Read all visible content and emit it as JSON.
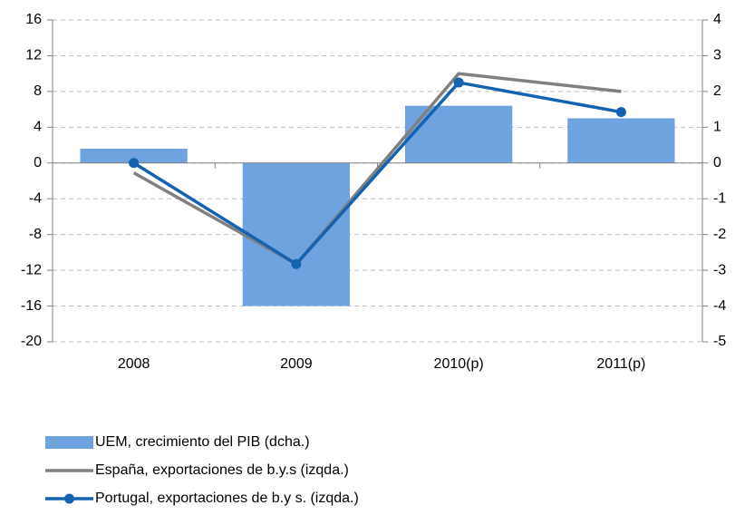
{
  "chart_data": {
    "type": "bar",
    "categories": [
      "2008",
      "2009",
      "2010(p)",
      "2011(p)"
    ],
    "series": [
      {
        "name": "UEM, crecimiento del PIB (dcha.)",
        "type": "bar",
        "axis": "y2",
        "color": "#6fa3e0",
        "values": [
          0.4,
          -4.0,
          1.6,
          1.25
        ]
      },
      {
        "name": "España, exportaciones de b.y.s (izqda.)",
        "type": "line",
        "color": "#808080",
        "values": [
          -1.1,
          -11.3,
          10.0,
          8.0
        ]
      },
      {
        "name": "Portugal, exportaciones de b.y s. (izqda.)",
        "type": "line",
        "color": "#1462b0",
        "marker": "circle",
        "values": [
          0.0,
          -11.3,
          9.0,
          5.7
        ]
      }
    ],
    "ylim": [
      -20,
      16
    ],
    "yticks": [
      -20,
      -16,
      -12,
      -8,
      -4,
      0,
      4,
      8,
      12,
      16
    ],
    "y2lim": [
      -5,
      4
    ],
    "y2ticks": [
      -5,
      -4,
      -3,
      -2,
      -1,
      0,
      1,
      2,
      3,
      4
    ],
    "grid": true
  }
}
